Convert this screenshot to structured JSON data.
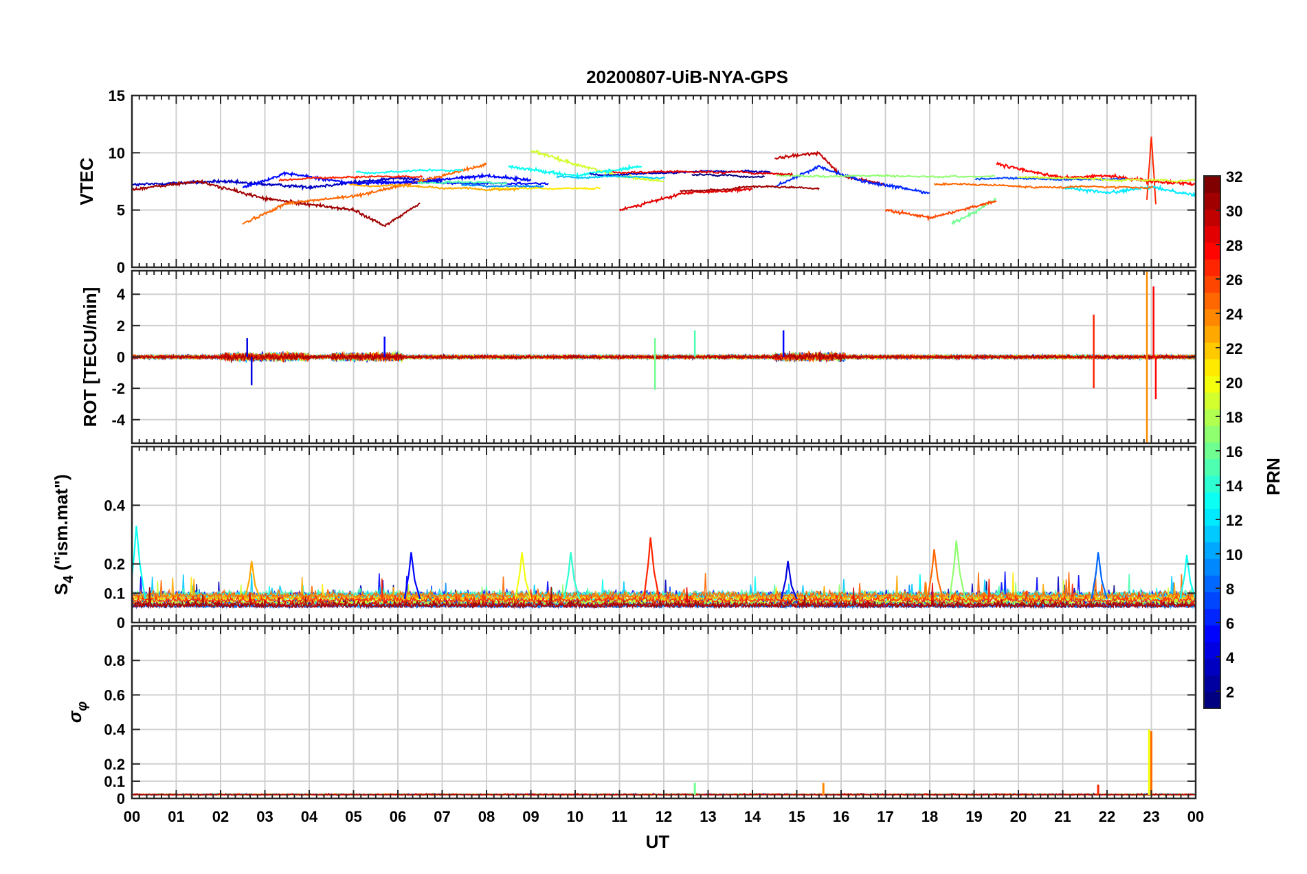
{
  "figure_title": "20200807-UiB-NYA-GPS",
  "xlabel": "UT",
  "x_ticks": [
    "00",
    "01",
    "02",
    "03",
    "04",
    "05",
    "06",
    "07",
    "08",
    "09",
    "10",
    "11",
    "12",
    "13",
    "14",
    "15",
    "16",
    "17",
    "18",
    "19",
    "20",
    "21",
    "22",
    "23",
    "00"
  ],
  "colorbar": {
    "label": "PRN",
    "min": 1,
    "max": 32,
    "ticks": [
      2,
      4,
      6,
      8,
      10,
      12,
      14,
      16,
      18,
      20,
      22,
      24,
      26,
      28,
      30,
      32
    ],
    "colormap": "jet"
  },
  "chart_data": [
    {
      "type": "line",
      "title": "20200807-UiB-NYA-GPS",
      "ylabel": "VTEC",
      "xlabel": "",
      "xlim": [
        0,
        24
      ],
      "ylim": [
        0,
        15
      ],
      "yticks": [
        "0",
        "5",
        "10",
        "15"
      ],
      "grid": true,
      "series_note_prn_range": [
        1,
        32
      ],
      "series": [
        {
          "prn": 3,
          "x": [
            0,
            2,
            4,
            6,
            7
          ],
          "y": [
            7.2,
            7.5,
            7.0,
            7.8,
            7.5
          ]
        },
        {
          "prn": 5,
          "x": [
            2.5,
            3.5,
            5,
            6.5,
            8,
            9
          ],
          "y": [
            7.0,
            8.2,
            7.3,
            7.5,
            8.0,
            7.6
          ]
        },
        {
          "prn": 31,
          "x": [
            0,
            1.5,
            3,
            4,
            5,
            5.7,
            6.5
          ],
          "y": [
            6.8,
            7.5,
            6.0,
            5.5,
            5.0,
            3.6,
            5.6
          ]
        },
        {
          "prn": 25,
          "x": [
            2.5,
            3.5,
            5,
            6.5,
            8
          ],
          "y": [
            3.8,
            5.6,
            6.2,
            7.5,
            9.0
          ]
        },
        {
          "prn": 19,
          "x": [
            9,
            10,
            11,
            12
          ],
          "y": [
            10.2,
            9.0,
            8.0,
            7.5
          ]
        },
        {
          "prn": 13,
          "x": [
            8.5,
            10,
            11.5
          ],
          "y": [
            8.8,
            8.0,
            8.8
          ]
        },
        {
          "prn": 29,
          "x": [
            11,
            12.5,
            14
          ],
          "y": [
            5.0,
            6.5,
            6.8
          ]
        },
        {
          "prn": 30,
          "x": [
            14.5,
            15.5,
            16,
            17
          ],
          "y": [
            9.5,
            10.0,
            8.0,
            7.2
          ]
        },
        {
          "prn": 6,
          "x": [
            14.5,
            15.5,
            16.5,
            18
          ],
          "y": [
            7.0,
            8.8,
            7.5,
            6.5
          ]
        },
        {
          "prn": 16,
          "x": [
            18.5,
            19,
            19.5
          ],
          "y": [
            3.8,
            4.8,
            6.0
          ]
        },
        {
          "prn": 26,
          "x": [
            17,
            18,
            19.5
          ],
          "y": [
            5.0,
            4.3,
            5.8
          ]
        },
        {
          "prn": 28,
          "x": [
            19.5,
            21,
            22,
            23,
            24
          ],
          "y": [
            9.0,
            7.8,
            8.0,
            7.5,
            7.3
          ]
        },
        {
          "prn": 27,
          "x": [
            22.9,
            23.0,
            23.1
          ],
          "y": [
            6.0,
            11.5,
            5.5
          ]
        },
        {
          "prn": 12,
          "x": [
            21,
            22,
            23,
            24
          ],
          "y": [
            7.0,
            6.5,
            7.0,
            6.3
          ]
        }
      ]
    },
    {
      "type": "line",
      "ylabel": "ROT [TECU/min]",
      "xlabel": "",
      "xlim": [
        0,
        24
      ],
      "ylim": [
        -5.5,
        5.5
      ],
      "yticks": [
        "-4",
        "-2",
        "0",
        "2",
        "4"
      ],
      "grid": true,
      "spikes": [
        {
          "prn": 4,
          "x": 2.7,
          "y": -1.8
        },
        {
          "prn": 4,
          "x": 2.6,
          "y": 1.2
        },
        {
          "prn": 5,
          "x": 5.7,
          "y": 1.3
        },
        {
          "prn": 16,
          "x": 11.8,
          "y": -2.1
        },
        {
          "prn": 16,
          "x": 11.8,
          "y": 1.2
        },
        {
          "prn": 15,
          "x": 12.7,
          "y": 1.7
        },
        {
          "prn": 5,
          "x": 14.7,
          "y": 1.7
        },
        {
          "prn": 27,
          "x": 21.7,
          "y": 2.7
        },
        {
          "prn": 27,
          "x": 21.7,
          "y": -2.0
        },
        {
          "prn": 24,
          "x": 22.9,
          "y": 5.5
        },
        {
          "prn": 24,
          "x": 22.9,
          "y": -5.5
        },
        {
          "prn": 28,
          "x": 23.05,
          "y": 4.5
        },
        {
          "prn": 28,
          "x": 23.1,
          "y": -2.7
        }
      ]
    },
    {
      "type": "line",
      "ylabel": "S_4 (\"ism.mat\")",
      "ylabel_main": "S",
      "ylabel_sub": "4",
      "ylabel_rest": " (\"ism.mat\")",
      "xlabel": "",
      "xlim": [
        0,
        24
      ],
      "ylim": [
        0,
        0.6
      ],
      "yticks": [
        "0",
        "0.1",
        "0.2",
        "0.4"
      ],
      "grid": true,
      "peaks": [
        {
          "prn": 13,
          "x": 0.1,
          "y": 0.33
        },
        {
          "prn": 23,
          "x": 2.7,
          "y": 0.21
        },
        {
          "prn": 5,
          "x": 6.3,
          "y": 0.24
        },
        {
          "prn": 20,
          "x": 8.8,
          "y": 0.24
        },
        {
          "prn": 14,
          "x": 9.9,
          "y": 0.24
        },
        {
          "prn": 27,
          "x": 11.7,
          "y": 0.29
        },
        {
          "prn": 4,
          "x": 14.8,
          "y": 0.21
        },
        {
          "prn": 25,
          "x": 18.1,
          "y": 0.25
        },
        {
          "prn": 17,
          "x": 18.6,
          "y": 0.28
        },
        {
          "prn": 8,
          "x": 21.8,
          "y": 0.24
        },
        {
          "prn": 13,
          "x": 23.8,
          "y": 0.23
        }
      ]
    },
    {
      "type": "line",
      "ylabel": "σ_φ",
      "ylabel_main": "σ",
      "ylabel_sub": "φ",
      "xlabel": "UT",
      "xlim": [
        0,
        24
      ],
      "ylim": [
        0,
        1.0
      ],
      "yticks": [
        "0",
        "0.1",
        "0.2",
        "0.4",
        "0.6",
        "0.8"
      ],
      "grid": true,
      "peaks": [
        {
          "prn": 16,
          "x": 12.7,
          "y": 0.09
        },
        {
          "prn": 24,
          "x": 15.6,
          "y": 0.09
        },
        {
          "prn": 27,
          "x": 21.8,
          "y": 0.08
        },
        {
          "prn": 20,
          "x": 22.95,
          "y": 0.4
        },
        {
          "prn": 25,
          "x": 23.0,
          "y": 0.39
        }
      ]
    }
  ]
}
